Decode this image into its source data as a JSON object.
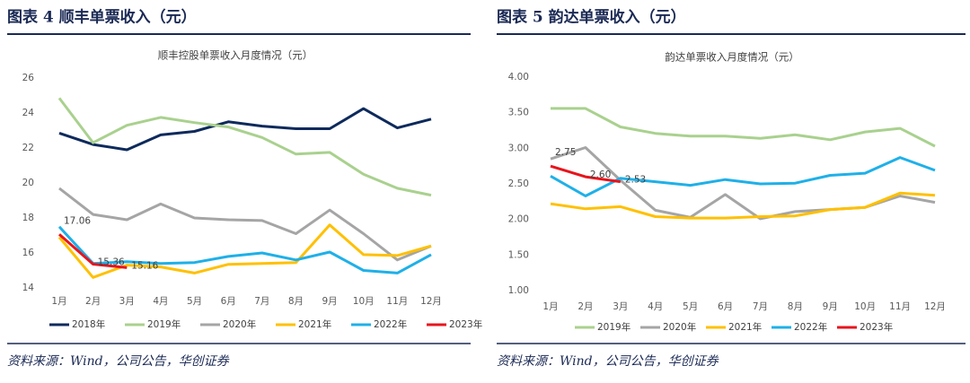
{
  "figures": [
    {
      "heading": "图表 4   顺丰单票收入（元）",
      "source": "资料来源：Wind，公司公告，华创证券"
    },
    {
      "heading": "图表 5   韵达单票收入（元）",
      "source": "资料来源：Wind，公司公告，华创证券"
    }
  ],
  "chart_data": [
    {
      "type": "line",
      "title": "顺丰控股单票收入月度情况（元）",
      "categories": [
        "1月",
        "2月",
        "3月",
        "4月",
        "5月",
        "6月",
        "7月",
        "8月",
        "9月",
        "10月",
        "11月",
        "12月"
      ],
      "ylim": [
        14,
        26
      ],
      "yticks": [
        14,
        16,
        18,
        20,
        22,
        24,
        26
      ],
      "grid": false,
      "legend": "bottom",
      "series": [
        {
          "name": "2018年",
          "color": "#0e2a5c",
          "values": [
            22.85,
            22.2,
            21.9,
            22.75,
            22.95,
            23.5,
            23.25,
            23.1,
            23.1,
            24.25,
            23.15,
            23.65
          ]
        },
        {
          "name": "2019年",
          "color": "#a9d18e",
          "values": [
            24.85,
            22.3,
            23.3,
            23.75,
            23.45,
            23.2,
            22.6,
            21.65,
            21.75,
            20.5,
            19.7,
            19.3
          ]
        },
        {
          "name": "2020年",
          "color": "#a5a5a5",
          "values": [
            19.7,
            18.2,
            17.9,
            18.8,
            18.0,
            17.9,
            17.85,
            17.1,
            18.45,
            17.1,
            15.6,
            16.4
          ]
        },
        {
          "name": "2021年",
          "color": "#ffc000",
          "values": [
            16.9,
            14.6,
            15.3,
            15.2,
            14.85,
            15.35,
            15.4,
            15.45,
            17.6,
            15.9,
            15.85,
            16.4
          ]
        },
        {
          "name": "2022年",
          "color": "#1fb0e8",
          "values": [
            17.5,
            15.4,
            15.5,
            15.4,
            15.45,
            15.8,
            16.0,
            15.6,
            16.05,
            15.0,
            14.85,
            15.9
          ]
        },
        {
          "name": "2023年",
          "color": "#e8141c",
          "values": [
            17.06,
            15.36,
            15.16,
            null,
            null,
            null,
            null,
            null,
            null,
            null,
            null,
            null
          ],
          "data_labels": true
        }
      ]
    },
    {
      "type": "line",
      "title": "韵达单票收入月度情况（元）",
      "categories": [
        "1月",
        "2月",
        "3月",
        "4月",
        "5月",
        "6月",
        "7月",
        "8月",
        "9月",
        "10月",
        "11月",
        "12月"
      ],
      "ylim": [
        1,
        4
      ],
      "yticks": [
        {
          "value": 1,
          "label": "1.00"
        },
        {
          "value": 1.5,
          "label": "1.50"
        },
        {
          "value": 2,
          "label": "2.00"
        },
        {
          "value": 2.5,
          "label": "2.50"
        },
        {
          "value": 3,
          "label": "3.00"
        },
        {
          "value": 3.5,
          "label": "3.50"
        },
        {
          "value": 4,
          "label": "4.00"
        }
      ],
      "grid": false,
      "legend": "bottom",
      "series": [
        {
          "name": "2019年",
          "color": "#a9d18e",
          "values": [
            3.56,
            3.56,
            3.3,
            3.21,
            3.17,
            3.17,
            3.14,
            3.19,
            3.12,
            3.23,
            3.28,
            3.03
          ]
        },
        {
          "name": "2020年",
          "color": "#a5a5a5",
          "values": [
            2.85,
            3.01,
            2.55,
            2.13,
            2.03,
            2.35,
            2.01,
            2.11,
            2.14,
            2.17,
            2.33,
            2.24
          ]
        },
        {
          "name": "2021年",
          "color": "#ffc000",
          "values": [
            2.22,
            2.15,
            2.18,
            2.04,
            2.02,
            2.02,
            2.04,
            2.05,
            2.14,
            2.17,
            2.37,
            2.34
          ]
        },
        {
          "name": "2022年",
          "color": "#1fb0e8",
          "values": [
            2.61,
            2.33,
            2.58,
            2.53,
            2.48,
            2.56,
            2.5,
            2.51,
            2.62,
            2.65,
            2.87,
            2.69
          ]
        },
        {
          "name": "2023年",
          "color": "#e8141c",
          "values": [
            2.75,
            2.6,
            2.53,
            null,
            null,
            null,
            null,
            null,
            null,
            null,
            null,
            null
          ],
          "value_labels": [
            "2.75",
            "2.60",
            "2.53",
            null,
            null,
            null,
            null,
            null,
            null,
            null,
            null,
            null
          ],
          "data_labels": true
        }
      ]
    }
  ]
}
